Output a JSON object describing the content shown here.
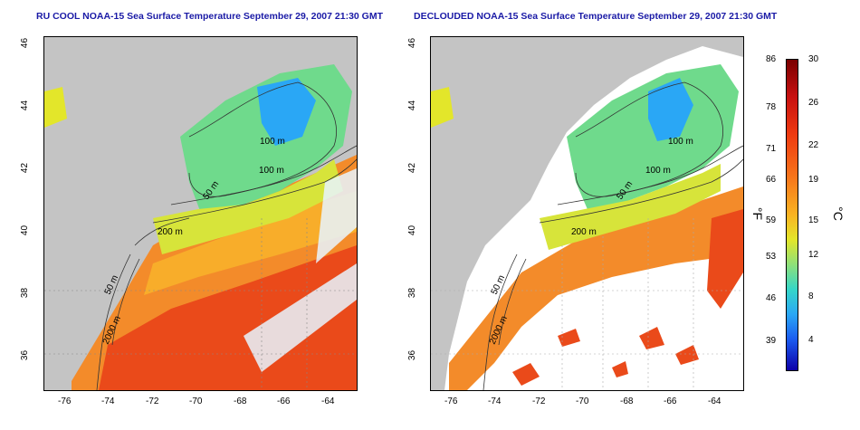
{
  "titles": {
    "left": "RU COOL NOAA-15 Sea Surface Temperature September 29, 2007 21:30 GMT",
    "right": "DECLOUDED NOAA-15 Sea Surface Temperature September 29, 2007 21:30 GMT"
  },
  "axes": {
    "lon_ticks": [
      "-76",
      "-74",
      "-72",
      "-70",
      "-68",
      "-66",
      "-64"
    ],
    "lat_ticks": [
      "46",
      "44",
      "42",
      "40",
      "38",
      "36"
    ]
  },
  "contour_labels": [
    "100 m",
    "100 m",
    "50 m",
    "200 m",
    "50 m",
    "2000 m"
  ],
  "colorbar": {
    "fahrenheit": [
      "86",
      "78",
      "71",
      "66",
      "59",
      "53",
      "46",
      "39"
    ],
    "celsius": [
      "30",
      "26",
      "22",
      "19",
      "15",
      "12",
      "8",
      "4"
    ],
    "unit_f": "°F",
    "unit_c": "°C"
  }
}
